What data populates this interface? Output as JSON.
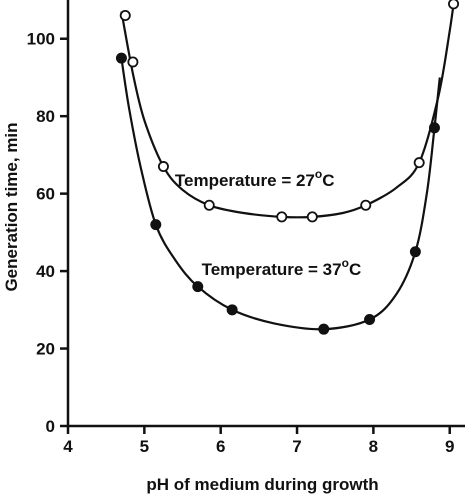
{
  "chart_data": {
    "type": "line",
    "title": "",
    "xlabel": "pH of medium during growth",
    "ylabel": "Generation time, min",
    "xlim": [
      4,
      9.2
    ],
    "ylim": [
      0,
      110
    ],
    "x_ticks": [
      "4",
      "5",
      "6",
      "7",
      "8",
      "9"
    ],
    "y_ticks": [
      "0",
      "20",
      "40",
      "60",
      "80",
      "100"
    ],
    "grid": false,
    "legend": "none",
    "series": [
      {
        "key": "t27",
        "marker": "open-circle",
        "color": "#111111",
        "points": [
          [
            4.75,
            106
          ],
          [
            4.85,
            94
          ],
          [
            5.25,
            67
          ],
          [
            5.85,
            57
          ],
          [
            6.8,
            54
          ],
          [
            7.2,
            54
          ],
          [
            7.9,
            57
          ],
          [
            8.6,
            68
          ],
          [
            9.05,
            109
          ]
        ],
        "curve": [
          [
            4.7,
            107
          ],
          [
            4.85,
            91
          ],
          [
            5.0,
            79
          ],
          [
            5.25,
            67
          ],
          [
            5.5,
            61
          ],
          [
            5.85,
            57
          ],
          [
            6.3,
            55
          ],
          [
            6.8,
            54
          ],
          [
            7.2,
            54
          ],
          [
            7.6,
            55
          ],
          [
            7.9,
            57
          ],
          [
            8.3,
            61.5
          ],
          [
            8.6,
            68
          ],
          [
            8.85,
            85
          ],
          [
            9.0,
            102
          ],
          [
            9.07,
            112
          ]
        ]
      },
      {
        "key": "t37",
        "marker": "filled-circle",
        "color": "#111111",
        "points": [
          [
            4.7,
            95
          ],
          [
            5.15,
            52
          ],
          [
            5.7,
            36
          ],
          [
            6.15,
            30
          ],
          [
            7.35,
            25
          ],
          [
            7.95,
            27.5
          ],
          [
            8.55,
            45
          ],
          [
            8.8,
            77
          ]
        ],
        "curve": [
          [
            4.7,
            95
          ],
          [
            4.8,
            82
          ],
          [
            4.95,
            67
          ],
          [
            5.15,
            52
          ],
          [
            5.4,
            43
          ],
          [
            5.7,
            36
          ],
          [
            6.15,
            30
          ],
          [
            6.7,
            26.5
          ],
          [
            7.35,
            25
          ],
          [
            7.95,
            27.5
          ],
          [
            8.3,
            34
          ],
          [
            8.55,
            45
          ],
          [
            8.7,
            60
          ],
          [
            8.8,
            77
          ],
          [
            8.87,
            90
          ]
        ]
      }
    ],
    "annotations": [
      {
        "text": "Temperature = 27",
        "sup": "o",
        "unit": "C",
        "at": [
          5.4,
          62
        ]
      },
      {
        "text": "Temperature = 37",
        "sup": "o",
        "unit": "C",
        "at": [
          5.75,
          39
        ]
      }
    ]
  }
}
